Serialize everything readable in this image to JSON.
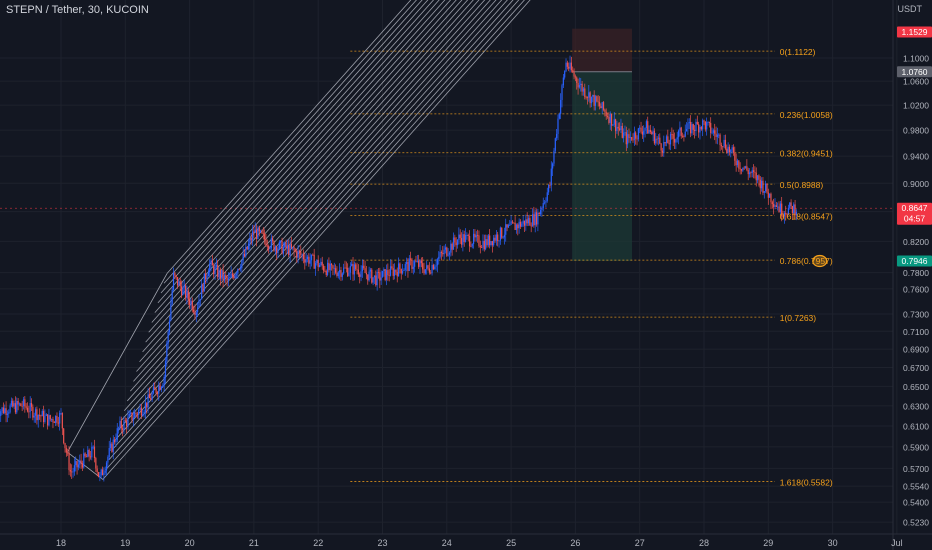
{
  "header": {
    "symbol_title": "STEPN / Tether, 30, KUCOIN",
    "currency": "USDT"
  },
  "colors": {
    "background": "#131722",
    "grid": "#1e222d",
    "axis_text": "#b2b5be",
    "candle_up": "#2962ff",
    "candle_down": "#ef5350",
    "fib_level": "#f7a21b",
    "pitchfork_lines": "#c9ccd6",
    "current_price_line": "#f23645",
    "position_target_zone": "#1c3a36",
    "position_stop_zone": "#3a2125",
    "label_high": "#f23645",
    "label_current": "#f23645",
    "label_mid": "#5d606b",
    "label_target": "#089981",
    "marker_circle": "#f7a21b"
  },
  "chart_data": {
    "type": "candlestick",
    "title": "STEPN / Tether, 30, KUCOIN",
    "y_axis_unit": "USDT",
    "x_axis": {
      "tick_labels": [
        "18",
        "19",
        "20",
        "21",
        "22",
        "23",
        "24",
        "25",
        "26",
        "27",
        "28",
        "29",
        "30",
        "Jul"
      ],
      "range_days": [
        17.0,
        31.0
      ]
    },
    "y_axis": {
      "scale": "log",
      "range": [
        0.518,
        1.18
      ],
      "tick_labels": [
        "1.1000",
        "1.0600",
        "1.0200",
        "0.9800",
        "0.9400",
        "0.9000",
        "0.8600",
        "0.8200",
        "0.7800",
        "0.7600",
        "0.7300",
        "0.7100",
        "0.6900",
        "0.6700",
        "0.6500",
        "0.6300",
        "0.6100",
        "0.5900",
        "0.5700",
        "0.5540",
        "0.5400",
        "0.5230"
      ]
    },
    "price_labels": [
      {
        "value": "1.1529",
        "role": "high"
      },
      {
        "value": "1.0760",
        "role": "mid"
      },
      {
        "value": "0.8647",
        "role": "current",
        "countdown": "04:57"
      },
      {
        "value": "0.7946",
        "role": "target"
      }
    ],
    "fib_retracement": {
      "levels": [
        {
          "ratio": "0",
          "price": 1.1122,
          "label": "0(1.1122)"
        },
        {
          "ratio": "0.236",
          "price": 1.0058,
          "label": "0.236(1.0058)"
        },
        {
          "ratio": "0.382",
          "price": 0.9451,
          "label": "0.382(0.9451)"
        },
        {
          "ratio": "0.5",
          "price": 0.8988,
          "label": "0.5(0.8988)"
        },
        {
          "ratio": "0.618",
          "price": 0.8547,
          "label": "0.618(0.8547)"
        },
        {
          "ratio": "0.786",
          "price": 0.7957,
          "label": "0.786(0.7957)"
        },
        {
          "ratio": "1",
          "price": 0.7263,
          "label": "1(0.7263)"
        },
        {
          "ratio": "1.618",
          "price": 0.5582,
          "label": "1.618(0.5582)"
        }
      ],
      "start_day": 22.5,
      "end_day": 29.1
    },
    "price_path": [
      [
        17.0,
        0.625
      ],
      [
        17.4,
        0.631
      ],
      [
        17.8,
        0.616
      ],
      [
        18.0,
        0.62
      ],
      [
        18.05,
        0.595
      ],
      [
        18.15,
        0.566
      ],
      [
        18.5,
        0.586
      ],
      [
        18.6,
        0.56
      ],
      [
        18.9,
        0.608
      ],
      [
        19.3,
        0.63
      ],
      [
        19.6,
        0.658
      ],
      [
        19.75,
        0.775
      ],
      [
        20.1,
        0.735
      ],
      [
        20.3,
        0.79
      ],
      [
        20.6,
        0.768
      ],
      [
        20.85,
        0.8
      ],
      [
        21.0,
        0.833
      ],
      [
        21.3,
        0.815
      ],
      [
        21.6,
        0.808
      ],
      [
        21.9,
        0.795
      ],
      [
        22.2,
        0.782
      ],
      [
        22.6,
        0.785
      ],
      [
        22.9,
        0.772
      ],
      [
        23.1,
        0.78
      ],
      [
        23.5,
        0.792
      ],
      [
        23.7,
        0.783
      ],
      [
        23.95,
        0.805
      ],
      [
        24.2,
        0.825
      ],
      [
        24.6,
        0.818
      ],
      [
        25.0,
        0.838
      ],
      [
        25.4,
        0.852
      ],
      [
        25.6,
        0.895
      ],
      [
        25.7,
        0.975
      ],
      [
        25.85,
        1.092
      ],
      [
        26.1,
        1.048
      ],
      [
        26.5,
        1.005
      ],
      [
        26.8,
        0.965
      ],
      [
        27.1,
        0.985
      ],
      [
        27.35,
        0.955
      ],
      [
        27.7,
        0.98
      ],
      [
        28.0,
        0.99
      ],
      [
        28.3,
        0.962
      ],
      [
        28.55,
        0.928
      ],
      [
        28.85,
        0.905
      ],
      [
        29.0,
        0.885
      ],
      [
        29.2,
        0.862
      ],
      [
        29.45,
        0.865
      ]
    ],
    "pitchfork": {
      "handle": [
        18.1,
        0.585
      ],
      "upper_anchor": [
        19.65,
        0.779
      ],
      "lower_anchor": [
        18.65,
        0.56
      ],
      "line_count": 22
    },
    "position_tool": {
      "entry": 1.076,
      "target": 0.7946,
      "stop": 1.1529,
      "start_day": 25.95,
      "end_day": 26.88
    },
    "marker": {
      "day": 29.8,
      "price": 0.7946
    }
  }
}
